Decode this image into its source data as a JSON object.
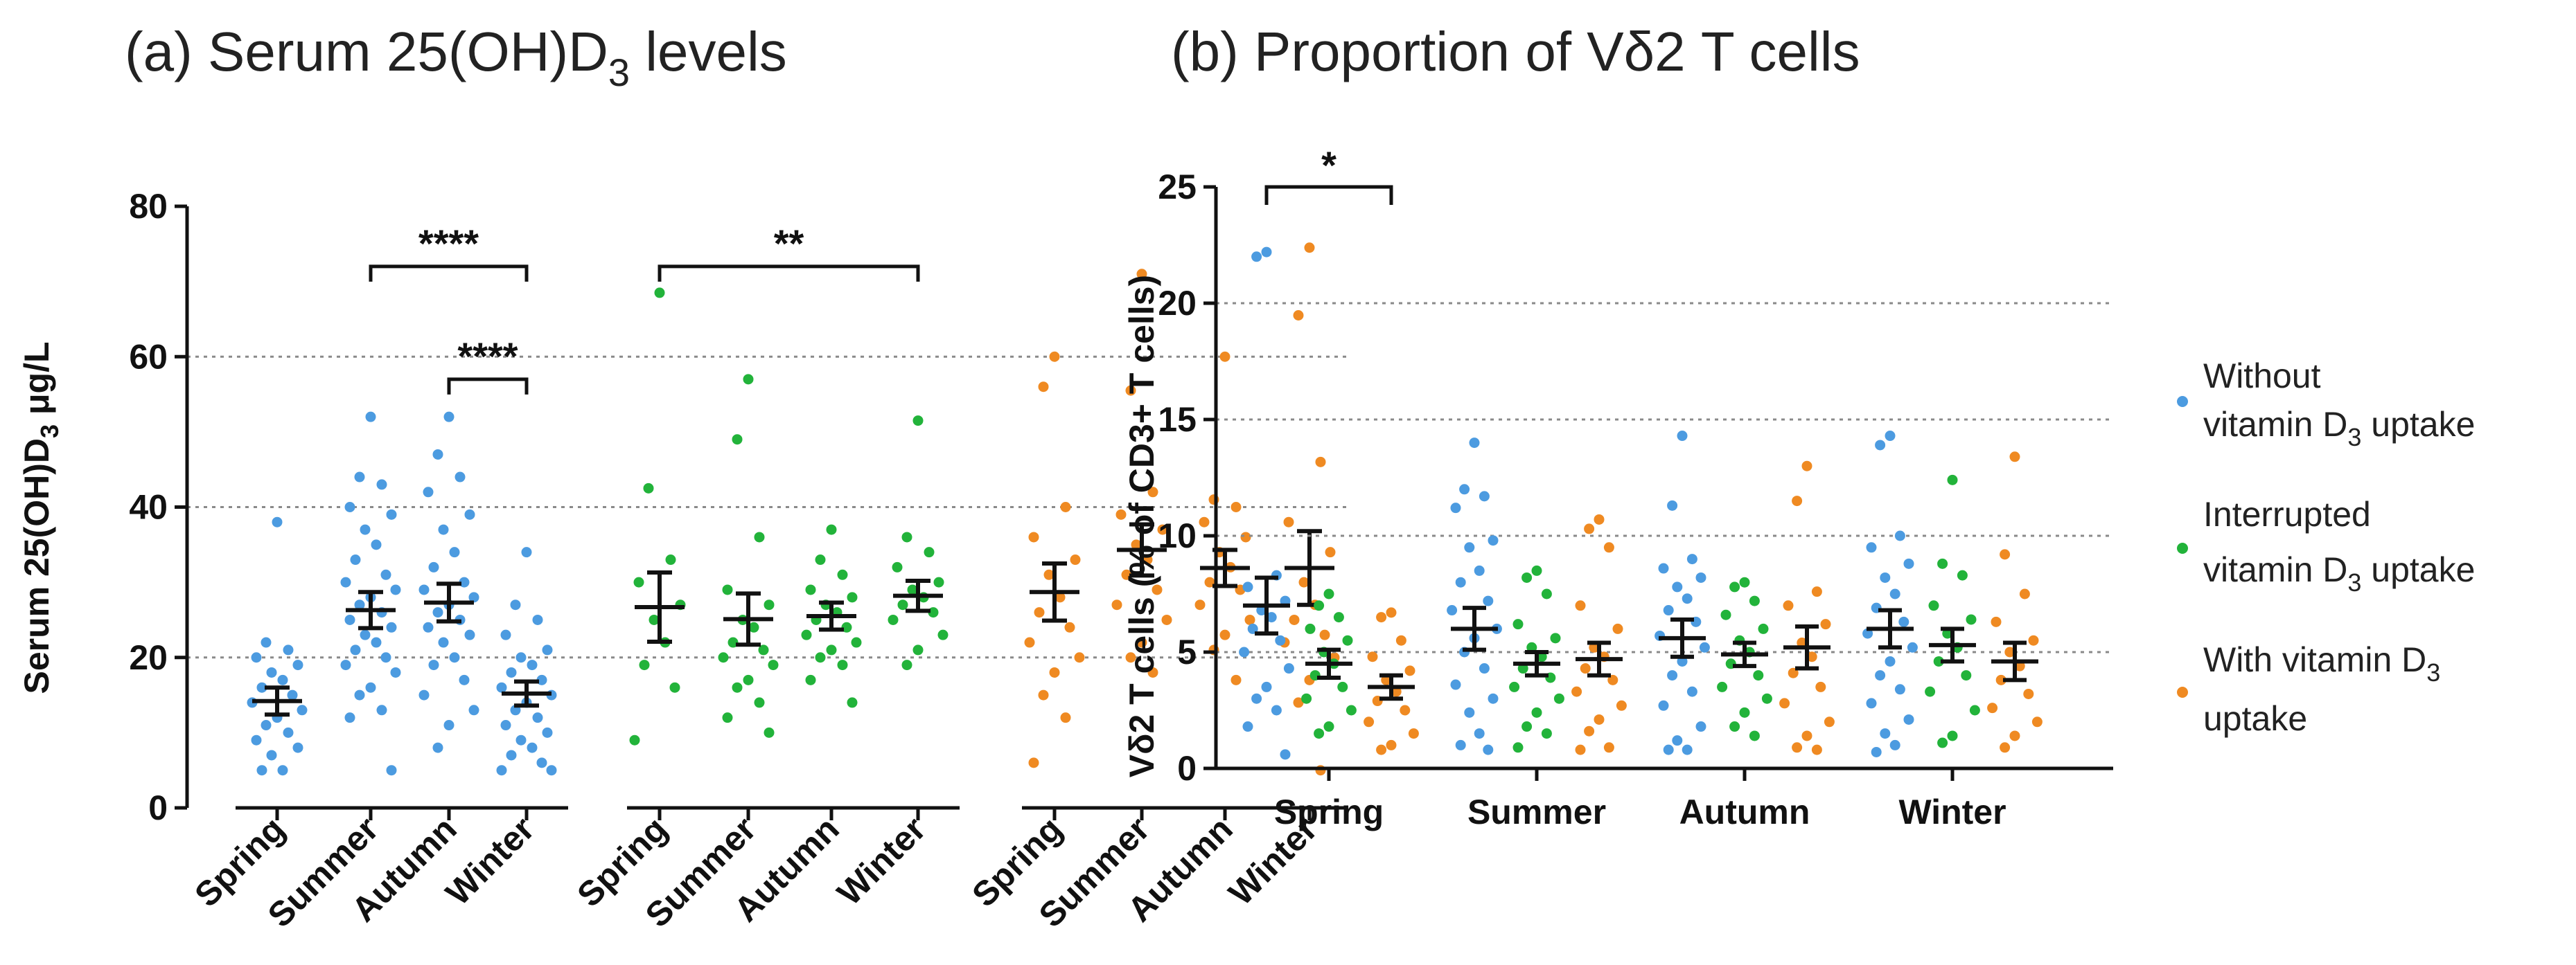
{
  "colors": {
    "without": "#4c9be0",
    "interrupted": "#22b33a",
    "with": "#ef8a22"
  },
  "legend": [
    {
      "line1": "Without",
      "line2_pre": "vitamin D",
      "line2_sub": "3",
      "line2_post": " uptake",
      "color_key": "without"
    },
    {
      "line1": "Interrupted",
      "line2_pre": "vitamin D",
      "line2_sub": "3",
      "line2_post": " uptake",
      "color_key": "interrupted"
    },
    {
      "line1_pre": "With vitamin D",
      "line1_sub": "3",
      "line2": "uptake",
      "color_key": "with"
    }
  ],
  "chart_data": [
    {
      "id": "a",
      "type": "scatter",
      "title_pre": "(a)  Serum 25(OH)D",
      "title_sub": "3",
      "title_post": " levels",
      "ylabel_pre": "Serum 25(OH)D",
      "ylabel_sub": "3",
      "ylabel_post": " μg/L",
      "ylim": [
        0,
        80
      ],
      "yticks": [
        0,
        20,
        40,
        60,
        80
      ],
      "gridlines": [
        20,
        40,
        60
      ],
      "categories": [
        "Spring",
        "Summer",
        "Autumn",
        "Winter",
        "Spring",
        "Summer",
        "Autumn",
        "Winter",
        "Spring",
        "Summer",
        "Autumn",
        "Winter"
      ],
      "groups": [
        {
          "group": "without",
          "season": "Spring",
          "mean": 14.2,
          "sem": 1.8,
          "points": [
            38,
            22,
            21,
            20,
            19,
            18,
            17,
            16,
            15,
            14,
            13,
            12,
            11,
            10,
            9,
            8,
            7,
            5,
            5
          ]
        },
        {
          "group": "without",
          "season": "Summer",
          "mean": 26.3,
          "sem": 2.4,
          "points": [
            52,
            44,
            43,
            40,
            39,
            37,
            35,
            33,
            31,
            30,
            29,
            28,
            27,
            26,
            25,
            24,
            23,
            22,
            21,
            20,
            19,
            18,
            16,
            15,
            13,
            12,
            5
          ]
        },
        {
          "group": "without",
          "season": "Autumn",
          "mean": 27.3,
          "sem": 2.5,
          "points": [
            52,
            47,
            44,
            42,
            39,
            37,
            34,
            32,
            30,
            29,
            28,
            27,
            26,
            25,
            24,
            23,
            22,
            20,
            19,
            17,
            15,
            13,
            11,
            8
          ]
        },
        {
          "group": "without",
          "season": "Winter",
          "mean": 15.2,
          "sem": 1.6,
          "points": [
            34,
            27,
            25,
            23,
            21,
            20,
            19,
            18,
            17,
            16,
            15,
            14,
            13,
            12,
            11,
            10,
            9,
            8,
            7,
            6,
            5,
            5
          ]
        },
        {
          "group": "interrupted",
          "season": "Spring",
          "mean": 26.7,
          "sem": 4.6,
          "points": [
            68.5,
            42.5,
            33,
            30,
            27,
            25,
            22,
            19,
            16,
            9
          ]
        },
        {
          "group": "interrupted",
          "season": "Summer",
          "mean": 25.1,
          "sem": 3.4,
          "points": [
            57,
            49,
            36,
            29,
            27,
            25,
            24,
            22,
            21,
            20,
            19,
            17,
            16,
            14,
            12,
            10
          ]
        },
        {
          "group": "interrupted",
          "season": "Autumn",
          "mean": 25.5,
          "sem": 1.8,
          "points": [
            37,
            33,
            31,
            29,
            28,
            27,
            26,
            25,
            24,
            23,
            22,
            21,
            20,
            19,
            17,
            14
          ]
        },
        {
          "group": "interrupted",
          "season": "Winter",
          "mean": 28.2,
          "sem": 2.0,
          "points": [
            51.5,
            36,
            34,
            32,
            30,
            29,
            28,
            27,
            26,
            25,
            23,
            21,
            19
          ]
        },
        {
          "group": "with",
          "season": "Spring",
          "mean": 28.7,
          "sem": 3.8,
          "points": [
            60,
            56,
            40,
            36,
            33,
            31,
            28,
            26,
            24,
            22,
            20,
            18,
            15,
            12,
            6
          ]
        },
        {
          "group": "with",
          "season": "Summer",
          "mean": 34.3,
          "sem": 3.4,
          "points": [
            71,
            55.5,
            42,
            39,
            37,
            35,
            33,
            31,
            29,
            27,
            25,
            22,
            20,
            18
          ]
        },
        {
          "group": "with",
          "season": "Autumn",
          "mean": 31.9,
          "sem": 2.4,
          "points": [
            60,
            41,
            40,
            38,
            36,
            34,
            32,
            30,
            29,
            27,
            25,
            23,
            21,
            17
          ]
        },
        {
          "group": "with",
          "season": "Winter",
          "mean": 31.9,
          "sem": 4.9,
          "points": [
            74.5,
            65.5,
            46,
            38,
            34,
            30,
            27,
            25,
            23,
            22,
            20,
            17,
            14,
            5
          ]
        }
      ],
      "significance": [
        {
          "from": 1,
          "to": 3,
          "y": 72,
          "label": "****"
        },
        {
          "from": 2,
          "to": 3,
          "y": 57,
          "label": "****"
        },
        {
          "from": 4,
          "to": 7,
          "y": 72,
          "label": "**"
        }
      ]
    },
    {
      "id": "b",
      "type": "scatter",
      "title": "(b)  Proportion of Vδ2 T cells",
      "ylabel": "Vδ2 T cells  (% of CD3+ T cells)",
      "ylim": [
        0,
        25
      ],
      "yticks": [
        0,
        5,
        10,
        15,
        20,
        25
      ],
      "gridlines": [
        5,
        10,
        15,
        20
      ],
      "categories": [
        "Spring",
        "Summer",
        "Autumn",
        "Winter"
      ],
      "groups": [
        {
          "group": "without",
          "season": "Spring",
          "mean": 7.0,
          "sem": 1.2,
          "points": [
            22.2,
            22.0,
            8.3,
            7.8,
            7.2,
            6.8,
            6.5,
            6.0,
            5.5,
            5.0,
            4.3,
            3.5,
            3.0,
            2.5,
            1.8,
            0.6
          ]
        },
        {
          "group": "interrupted",
          "season": "Spring",
          "mean": 4.5,
          "sem": 0.6,
          "points": [
            7.5,
            7.0,
            6.5,
            6.0,
            5.5,
            5.0,
            4.5,
            4.0,
            3.5,
            3.0,
            2.5,
            1.8,
            1.5
          ]
        },
        {
          "group": "with",
          "season": "Spring",
          "mean": 3.5,
          "sem": 0.5,
          "points": [
            6.7,
            6.5,
            5.5,
            4.8,
            4.2,
            3.8,
            3.3,
            2.9,
            2.5,
            2.0,
            1.5,
            1.0,
            0.8
          ]
        },
        {
          "group": "without",
          "season": "Summer",
          "mean": 6.0,
          "sem": 0.9,
          "points": [
            14.0,
            12.0,
            11.7,
            11.2,
            9.8,
            9.5,
            8.5,
            8.0,
            7.2,
            6.8,
            6.0,
            5.6,
            5.0,
            4.3,
            3.6,
            3.0,
            2.4,
            1.5,
            1.0,
            0.8
          ]
        },
        {
          "group": "interrupted",
          "season": "Summer",
          "mean": 4.5,
          "sem": 0.5,
          "points": [
            8.5,
            8.2,
            7.5,
            6.2,
            5.6,
            5.2,
            4.8,
            4.3,
            3.9,
            3.5,
            3.0,
            2.4,
            1.8,
            1.5,
            0.9
          ]
        },
        {
          "group": "with",
          "season": "Summer",
          "mean": 4.7,
          "sem": 0.7,
          "points": [
            10.7,
            10.3,
            9.5,
            7.0,
            6.0,
            5.2,
            4.8,
            4.3,
            3.8,
            3.3,
            2.7,
            2.1,
            1.6,
            0.9,
            0.8
          ]
        },
        {
          "group": "without",
          "season": "Autumn",
          "mean": 5.6,
          "sem": 0.8,
          "points": [
            14.3,
            11.3,
            9.0,
            8.6,
            8.2,
            7.8,
            7.3,
            6.8,
            6.3,
            5.7,
            5.2,
            4.6,
            4.0,
            3.3,
            2.7,
            1.8,
            1.2,
            0.8,
            0.8
          ]
        },
        {
          "group": "interrupted",
          "season": "Autumn",
          "mean": 4.9,
          "sem": 0.5,
          "points": [
            8.0,
            7.8,
            7.2,
            6.6,
            6.0,
            5.5,
            5.0,
            4.5,
            4.0,
            3.5,
            3.0,
            2.4,
            1.8,
            1.4
          ]
        },
        {
          "group": "with",
          "season": "Autumn",
          "mean": 5.2,
          "sem": 0.9,
          "points": [
            13.0,
            11.5,
            7.6,
            7.0,
            6.2,
            5.4,
            4.8,
            4.1,
            3.5,
            2.8,
            2.0,
            1.4,
            0.9,
            0.8
          ]
        },
        {
          "group": "without",
          "season": "Winter",
          "mean": 6.0,
          "sem": 0.8,
          "points": [
            14.3,
            13.9,
            10.0,
            9.5,
            8.8,
            8.2,
            7.5,
            6.9,
            6.3,
            5.8,
            5.2,
            4.6,
            4.0,
            3.4,
            2.8,
            2.1,
            1.5,
            1.0,
            0.7
          ]
        },
        {
          "group": "interrupted",
          "season": "Winter",
          "mean": 5.3,
          "sem": 0.7,
          "points": [
            12.4,
            8.8,
            8.3,
            7.0,
            6.4,
            5.8,
            5.2,
            4.6,
            4.0,
            3.3,
            2.5,
            1.4,
            1.1
          ]
        },
        {
          "group": "with",
          "season": "Winter",
          "mean": 4.6,
          "sem": 0.8,
          "points": [
            13.4,
            9.2,
            7.5,
            6.3,
            5.5,
            5.0,
            4.4,
            3.8,
            3.2,
            2.6,
            2.0,
            1.4,
            0.9
          ]
        }
      ],
      "significance": [
        {
          "from": 0,
          "to": 2,
          "y": 25,
          "label": "*"
        }
      ]
    }
  ]
}
